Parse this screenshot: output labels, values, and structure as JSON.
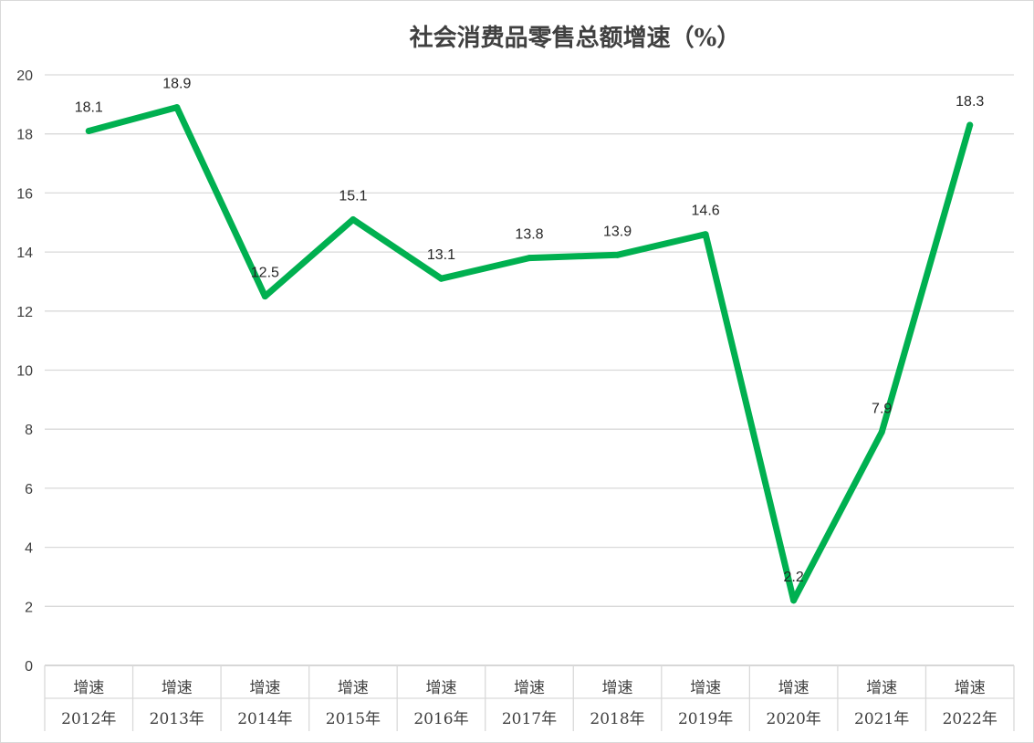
{
  "chart_data": {
    "type": "line",
    "title": "社会消费品零售总额增速（%）",
    "xlabel": "",
    "ylabel": "",
    "ylim": [
      0,
      20
    ],
    "yticks": [
      0,
      2,
      4,
      6,
      8,
      10,
      12,
      14,
      16,
      18,
      20
    ],
    "grid": true,
    "legend": "none",
    "categories": [
      {
        "top": "增速",
        "bottom": "2012年"
      },
      {
        "top": "增速",
        "bottom": "2013年"
      },
      {
        "top": "增速",
        "bottom": "2014年"
      },
      {
        "top": "增速",
        "bottom": "2015年"
      },
      {
        "top": "增速",
        "bottom": "2016年"
      },
      {
        "top": "增速",
        "bottom": "2017年"
      },
      {
        "top": "增速",
        "bottom": "2018年"
      },
      {
        "top": "增速",
        "bottom": "2019年"
      },
      {
        "top": "增速",
        "bottom": "2020年"
      },
      {
        "top": "增速",
        "bottom": "2021年"
      },
      {
        "top": "增速",
        "bottom": "2022年"
      }
    ],
    "series": [
      {
        "values": [
          18.1,
          18.9,
          12.5,
          15.1,
          13.1,
          13.8,
          13.9,
          14.6,
          2.2,
          7.9,
          18.3
        ],
        "data_labels": [
          "18.1",
          "18.9",
          "12.5",
          "15.1",
          "13.1",
          "13.8",
          "13.9",
          "14.6",
          "2.2",
          "7.9",
          "18.3"
        ],
        "color": "#00b050"
      }
    ],
    "colors": {
      "grid": "#d9d9d9",
      "axis": "#bfbfbf",
      "text": "#404040"
    }
  }
}
